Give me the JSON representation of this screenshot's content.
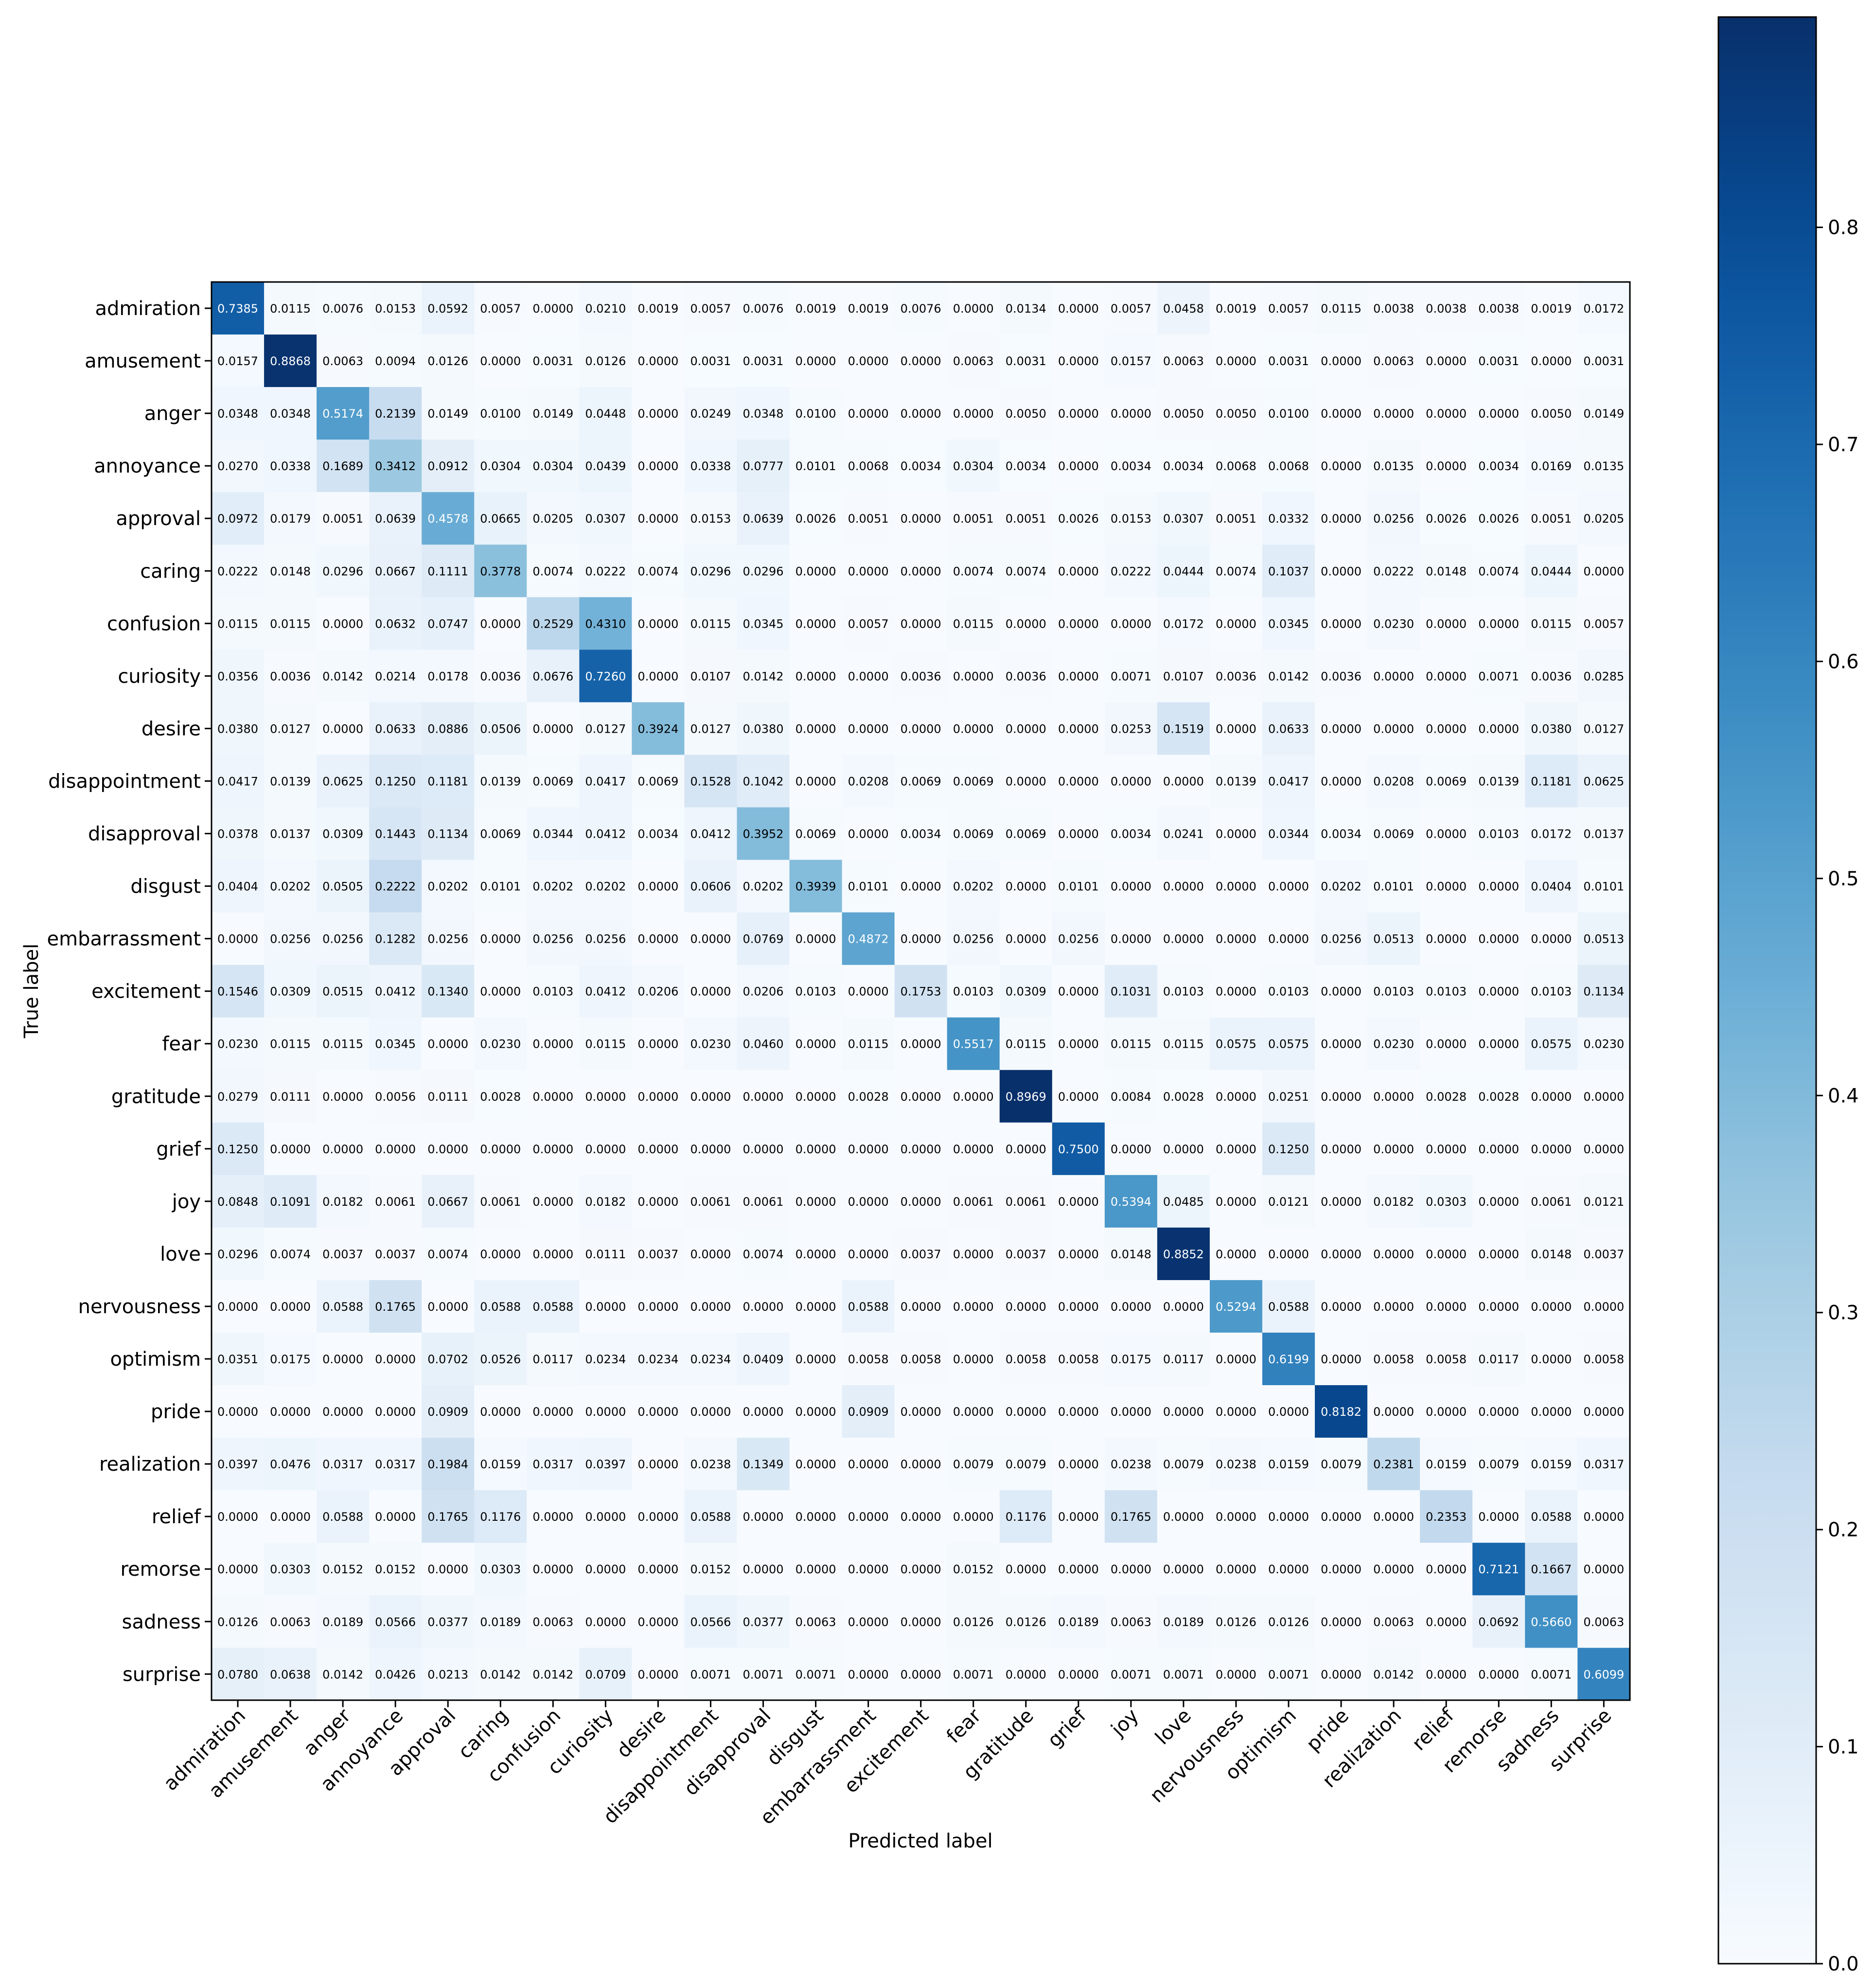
{
  "chart_data": {
    "type": "heatmap",
    "title": "",
    "xlabel": "Predicted label",
    "ylabel": "True label",
    "colormap": "Blues",
    "color_low": "#f7fbff",
    "color_high": "#08306b",
    "vmin": 0.0,
    "vmax": 0.8969,
    "colorbar_ticks": [
      "0.0",
      "0.1",
      "0.2",
      "0.3",
      "0.4",
      "0.5",
      "0.6",
      "0.7",
      "0.8"
    ],
    "colorbar_tick_values": [
      0.0,
      0.1,
      0.2,
      0.3,
      0.4,
      0.5,
      0.6,
      0.7,
      0.8
    ],
    "labels": [
      "admiration",
      "amusement",
      "anger",
      "annoyance",
      "approval",
      "caring",
      "confusion",
      "curiosity",
      "desire",
      "disappointment",
      "disapproval",
      "disgust",
      "embarrassment",
      "excitement",
      "fear",
      "gratitude",
      "grief",
      "joy",
      "love",
      "nervousness",
      "optimism",
      "pride",
      "realization",
      "relief",
      "remorse",
      "sadness",
      "surprise"
    ],
    "matrix": [
      [
        "0.7385",
        "0.0115",
        "0.0076",
        "0.0153",
        "0.0592",
        "0.0057",
        "0.0000",
        "0.0210",
        "0.0019",
        "0.0057",
        "0.0076",
        "0.0019",
        "0.0019",
        "0.0076",
        "0.0000",
        "0.0134",
        "0.0000",
        "0.0057",
        "0.0458",
        "0.0019",
        "0.0057",
        "0.0115",
        "0.0038",
        "0.0038",
        "0.0038",
        "0.0019",
        "0.0172"
      ],
      [
        "0.0157",
        "0.8868",
        "0.0063",
        "0.0094",
        "0.0126",
        "0.0000",
        "0.0031",
        "0.0126",
        "0.0000",
        "0.0031",
        "0.0031",
        "0.0000",
        "0.0000",
        "0.0000",
        "0.0063",
        "0.0031",
        "0.0000",
        "0.0157",
        "0.0063",
        "0.0000",
        "0.0031",
        "0.0000",
        "0.0063",
        "0.0000",
        "0.0031",
        "0.0000",
        "0.0031"
      ],
      [
        "0.0348",
        "0.0348",
        "0.5174",
        "0.2139",
        "0.0149",
        "0.0100",
        "0.0149",
        "0.0448",
        "0.0000",
        "0.0249",
        "0.0348",
        "0.0100",
        "0.0000",
        "0.0000",
        "0.0000",
        "0.0050",
        "0.0000",
        "0.0000",
        "0.0050",
        "0.0050",
        "0.0100",
        "0.0000",
        "0.0000",
        "0.0000",
        "0.0000",
        "0.0050",
        "0.0149"
      ],
      [
        "0.0270",
        "0.0338",
        "0.1689",
        "0.3412",
        "0.0912",
        "0.0304",
        "0.0304",
        "0.0439",
        "0.0000",
        "0.0338",
        "0.0777",
        "0.0101",
        "0.0068",
        "0.0034",
        "0.0304",
        "0.0034",
        "0.0000",
        "0.0034",
        "0.0034",
        "0.0068",
        "0.0068",
        "0.0000",
        "0.0135",
        "0.0000",
        "0.0034",
        "0.0169",
        "0.0135"
      ],
      [
        "0.0972",
        "0.0179",
        "0.0051",
        "0.0639",
        "0.4578",
        "0.0665",
        "0.0205",
        "0.0307",
        "0.0000",
        "0.0153",
        "0.0639",
        "0.0026",
        "0.0051",
        "0.0000",
        "0.0051",
        "0.0051",
        "0.0026",
        "0.0153",
        "0.0307",
        "0.0051",
        "0.0332",
        "0.0000",
        "0.0256",
        "0.0026",
        "0.0026",
        "0.0051",
        "0.0205"
      ],
      [
        "0.0222",
        "0.0148",
        "0.0296",
        "0.0667",
        "0.1111",
        "0.3778",
        "0.0074",
        "0.0222",
        "0.0074",
        "0.0296",
        "0.0296",
        "0.0000",
        "0.0000",
        "0.0000",
        "0.0074",
        "0.0074",
        "0.0000",
        "0.0222",
        "0.0444",
        "0.0074",
        "0.1037",
        "0.0000",
        "0.0222",
        "0.0148",
        "0.0074",
        "0.0444",
        "0.0000"
      ],
      [
        "0.0115",
        "0.0115",
        "0.0000",
        "0.0632",
        "0.0747",
        "0.0000",
        "0.2529",
        "0.4310",
        "0.0000",
        "0.0115",
        "0.0345",
        "0.0000",
        "0.0057",
        "0.0000",
        "0.0115",
        "0.0000",
        "0.0000",
        "0.0000",
        "0.0172",
        "0.0000",
        "0.0345",
        "0.0000",
        "0.0230",
        "0.0000",
        "0.0000",
        "0.0115",
        "0.0057"
      ],
      [
        "0.0356",
        "0.0036",
        "0.0142",
        "0.0214",
        "0.0178",
        "0.0036",
        "0.0676",
        "0.7260",
        "0.0000",
        "0.0107",
        "0.0142",
        "0.0000",
        "0.0000",
        "0.0036",
        "0.0000",
        "0.0036",
        "0.0000",
        "0.0071",
        "0.0107",
        "0.0036",
        "0.0142",
        "0.0036",
        "0.0000",
        "0.0000",
        "0.0071",
        "0.0036",
        "0.0285"
      ],
      [
        "0.0380",
        "0.0127",
        "0.0000",
        "0.0633",
        "0.0886",
        "0.0506",
        "0.0000",
        "0.0127",
        "0.3924",
        "0.0127",
        "0.0380",
        "0.0000",
        "0.0000",
        "0.0000",
        "0.0000",
        "0.0000",
        "0.0000",
        "0.0253",
        "0.1519",
        "0.0000",
        "0.0633",
        "0.0000",
        "0.0000",
        "0.0000",
        "0.0000",
        "0.0380",
        "0.0127"
      ],
      [
        "0.0417",
        "0.0139",
        "0.0625",
        "0.1250",
        "0.1181",
        "0.0139",
        "0.0069",
        "0.0417",
        "0.0069",
        "0.1528",
        "0.1042",
        "0.0000",
        "0.0208",
        "0.0069",
        "0.0069",
        "0.0000",
        "0.0000",
        "0.0000",
        "0.0000",
        "0.0139",
        "0.0417",
        "0.0000",
        "0.0208",
        "0.0069",
        "0.0139",
        "0.1181",
        "0.0625"
      ],
      [
        "0.0378",
        "0.0137",
        "0.0309",
        "0.1443",
        "0.1134",
        "0.0069",
        "0.0344",
        "0.0412",
        "0.0034",
        "0.0412",
        "0.3952",
        "0.0069",
        "0.0000",
        "0.0034",
        "0.0069",
        "0.0069",
        "0.0000",
        "0.0034",
        "0.0241",
        "0.0000",
        "0.0344",
        "0.0034",
        "0.0069",
        "0.0000",
        "0.0103",
        "0.0172",
        "0.0137"
      ],
      [
        "0.0404",
        "0.0202",
        "0.0505",
        "0.2222",
        "0.0202",
        "0.0101",
        "0.0202",
        "0.0202",
        "0.0000",
        "0.0606",
        "0.0202",
        "0.3939",
        "0.0101",
        "0.0000",
        "0.0202",
        "0.0000",
        "0.0101",
        "0.0000",
        "0.0000",
        "0.0000",
        "0.0000",
        "0.0202",
        "0.0101",
        "0.0000",
        "0.0000",
        "0.0404",
        "0.0101"
      ],
      [
        "0.0000",
        "0.0256",
        "0.0256",
        "0.1282",
        "0.0256",
        "0.0000",
        "0.0256",
        "0.0256",
        "0.0000",
        "0.0000",
        "0.0769",
        "0.0000",
        "0.4872",
        "0.0000",
        "0.0256",
        "0.0000",
        "0.0256",
        "0.0000",
        "0.0000",
        "0.0000",
        "0.0000",
        "0.0256",
        "0.0513",
        "0.0000",
        "0.0000",
        "0.0000",
        "0.0513"
      ],
      [
        "0.1546",
        "0.0309",
        "0.0515",
        "0.0412",
        "0.1340",
        "0.0000",
        "0.0103",
        "0.0412",
        "0.0206",
        "0.0000",
        "0.0206",
        "0.0103",
        "0.0000",
        "0.1753",
        "0.0103",
        "0.0309",
        "0.0000",
        "0.1031",
        "0.0103",
        "0.0000",
        "0.0103",
        "0.0000",
        "0.0103",
        "0.0103",
        "0.0000",
        "0.0103",
        "0.1134"
      ],
      [
        "0.0230",
        "0.0115",
        "0.0115",
        "0.0345",
        "0.0000",
        "0.0230",
        "0.0000",
        "0.0115",
        "0.0000",
        "0.0230",
        "0.0460",
        "0.0000",
        "0.0115",
        "0.0000",
        "0.5517",
        "0.0115",
        "0.0000",
        "0.0115",
        "0.0115",
        "0.0575",
        "0.0575",
        "0.0000",
        "0.0230",
        "0.0000",
        "0.0000",
        "0.0575",
        "0.0230"
      ],
      [
        "0.0279",
        "0.0111",
        "0.0000",
        "0.0056",
        "0.0111",
        "0.0028",
        "0.0000",
        "0.0000",
        "0.0000",
        "0.0000",
        "0.0000",
        "0.0000",
        "0.0028",
        "0.0000",
        "0.0000",
        "0.8969",
        "0.0000",
        "0.0084",
        "0.0028",
        "0.0000",
        "0.0251",
        "0.0000",
        "0.0000",
        "0.0028",
        "0.0028",
        "0.0000",
        "0.0000"
      ],
      [
        "0.1250",
        "0.0000",
        "0.0000",
        "0.0000",
        "0.0000",
        "0.0000",
        "0.0000",
        "0.0000",
        "0.0000",
        "0.0000",
        "0.0000",
        "0.0000",
        "0.0000",
        "0.0000",
        "0.0000",
        "0.0000",
        "0.7500",
        "0.0000",
        "0.0000",
        "0.0000",
        "0.1250",
        "0.0000",
        "0.0000",
        "0.0000",
        "0.0000",
        "0.0000",
        "0.0000"
      ],
      [
        "0.0848",
        "0.1091",
        "0.0182",
        "0.0061",
        "0.0667",
        "0.0061",
        "0.0000",
        "0.0182",
        "0.0000",
        "0.0061",
        "0.0061",
        "0.0000",
        "0.0000",
        "0.0000",
        "0.0061",
        "0.0061",
        "0.0000",
        "0.5394",
        "0.0485",
        "0.0000",
        "0.0121",
        "0.0000",
        "0.0182",
        "0.0303",
        "0.0000",
        "0.0061",
        "0.0121"
      ],
      [
        "0.0296",
        "0.0074",
        "0.0037",
        "0.0037",
        "0.0074",
        "0.0000",
        "0.0000",
        "0.0111",
        "0.0037",
        "0.0000",
        "0.0074",
        "0.0000",
        "0.0000",
        "0.0037",
        "0.0000",
        "0.0037",
        "0.0000",
        "0.0148",
        "0.8852",
        "0.0000",
        "0.0000",
        "0.0000",
        "0.0000",
        "0.0000",
        "0.0000",
        "0.0148",
        "0.0037"
      ],
      [
        "0.0000",
        "0.0000",
        "0.0588",
        "0.1765",
        "0.0000",
        "0.0588",
        "0.0588",
        "0.0000",
        "0.0000",
        "0.0000",
        "0.0000",
        "0.0000",
        "0.0588",
        "0.0000",
        "0.0000",
        "0.0000",
        "0.0000",
        "0.0000",
        "0.0000",
        "0.5294",
        "0.0588",
        "0.0000",
        "0.0000",
        "0.0000",
        "0.0000",
        "0.0000",
        "0.0000"
      ],
      [
        "0.0351",
        "0.0175",
        "0.0000",
        "0.0000",
        "0.0702",
        "0.0526",
        "0.0117",
        "0.0234",
        "0.0234",
        "0.0234",
        "0.0409",
        "0.0000",
        "0.0058",
        "0.0058",
        "0.0000",
        "0.0058",
        "0.0058",
        "0.0175",
        "0.0117",
        "0.0000",
        "0.6199",
        "0.0000",
        "0.0058",
        "0.0058",
        "0.0117",
        "0.0000",
        "0.0058"
      ],
      [
        "0.0000",
        "0.0000",
        "0.0000",
        "0.0000",
        "0.0909",
        "0.0000",
        "0.0000",
        "0.0000",
        "0.0000",
        "0.0000",
        "0.0000",
        "0.0000",
        "0.0909",
        "0.0000",
        "0.0000",
        "0.0000",
        "0.0000",
        "0.0000",
        "0.0000",
        "0.0000",
        "0.0000",
        "0.8182",
        "0.0000",
        "0.0000",
        "0.0000",
        "0.0000",
        "0.0000"
      ],
      [
        "0.0397",
        "0.0476",
        "0.0317",
        "0.0317",
        "0.1984",
        "0.0159",
        "0.0317",
        "0.0397",
        "0.0000",
        "0.0238",
        "0.1349",
        "0.0000",
        "0.0000",
        "0.0000",
        "0.0079",
        "0.0079",
        "0.0000",
        "0.0238",
        "0.0079",
        "0.0238",
        "0.0159",
        "0.0079",
        "0.2381",
        "0.0159",
        "0.0079",
        "0.0159",
        "0.0317"
      ],
      [
        "0.0000",
        "0.0000",
        "0.0588",
        "0.0000",
        "0.1765",
        "0.1176",
        "0.0000",
        "0.0000",
        "0.0000",
        "0.0588",
        "0.0000",
        "0.0000",
        "0.0000",
        "0.0000",
        "0.0000",
        "0.1176",
        "0.0000",
        "0.1765",
        "0.0000",
        "0.0000",
        "0.0000",
        "0.0000",
        "0.0000",
        "0.2353",
        "0.0000",
        "0.0588",
        "0.0000"
      ],
      [
        "0.0000",
        "0.0303",
        "0.0152",
        "0.0152",
        "0.0000",
        "0.0303",
        "0.0000",
        "0.0000",
        "0.0000",
        "0.0152",
        "0.0000",
        "0.0000",
        "0.0000",
        "0.0000",
        "0.0152",
        "0.0000",
        "0.0000",
        "0.0000",
        "0.0000",
        "0.0000",
        "0.0000",
        "0.0000",
        "0.0000",
        "0.0000",
        "0.7121",
        "0.1667",
        "0.0000"
      ],
      [
        "0.0126",
        "0.0063",
        "0.0189",
        "0.0566",
        "0.0377",
        "0.0189",
        "0.0063",
        "0.0000",
        "0.0000",
        "0.0566",
        "0.0377",
        "0.0063",
        "0.0000",
        "0.0000",
        "0.0126",
        "0.0126",
        "0.0189",
        "0.0063",
        "0.0189",
        "0.0126",
        "0.0126",
        "0.0000",
        "0.0063",
        "0.0000",
        "0.0692",
        "0.5660",
        "0.0063"
      ],
      [
        "0.0780",
        "0.0638",
        "0.0142",
        "0.0426",
        "0.0213",
        "0.0142",
        "0.0142",
        "0.0709",
        "0.0000",
        "0.0071",
        "0.0071",
        "0.0071",
        "0.0000",
        "0.0000",
        "0.0071",
        "0.0000",
        "0.0000",
        "0.0071",
        "0.0071",
        "0.0000",
        "0.0071",
        "0.0000",
        "0.0142",
        "0.0000",
        "0.0000",
        "0.0071",
        "0.6099"
      ]
    ]
  }
}
